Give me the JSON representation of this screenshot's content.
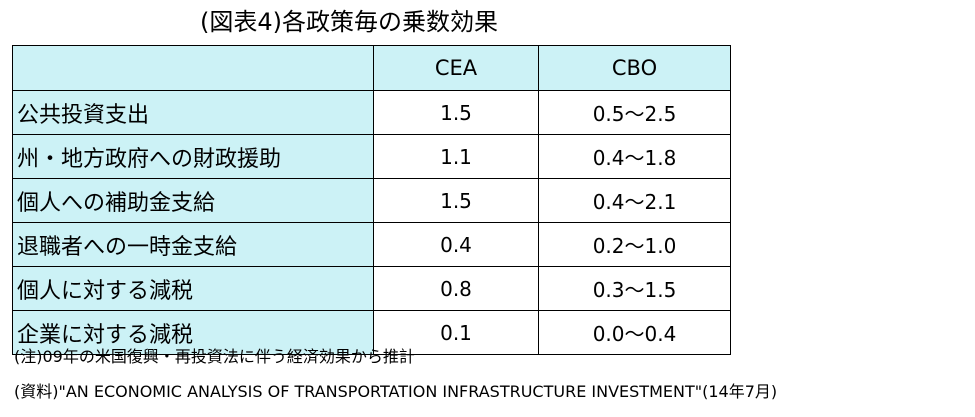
{
  "title": "(図表4)各政策毎の乗数効果",
  "table": {
    "columns": [
      "",
      "CEA",
      "CBO"
    ],
    "rows": [
      {
        "policy": "公共投資支出",
        "cea": "1.5",
        "cbo": "0.5～2.5"
      },
      {
        "policy": "州・地方政府への財政援助",
        "cea": "1.1",
        "cbo": "0.4～1.8"
      },
      {
        "policy": "個人への補助金支給",
        "cea": "1.5",
        "cbo": "0.4～2.1"
      },
      {
        "policy": "退職者への一時金支給",
        "cea": "0.4",
        "cbo": "0.2～1.0"
      },
      {
        "policy": "個人に対する減税",
        "cea": "0.8",
        "cbo": "0.3～1.5"
      },
      {
        "policy": "企業に対する減税",
        "cea": "0.1",
        "cbo": "0.0～0.4"
      }
    ]
  },
  "notes": {
    "note": "(注)09年の米国復興・再投資法に伴う経済効果から推計",
    "source": "(資料)\"AN ECONOMIC ANALYSIS OF TRANSPORTATION  INFRASTRUCTURE INVESTMENT\"(14年7月)"
  },
  "colors": {
    "header_fill": "#ccf2f6",
    "border": "#000000"
  }
}
